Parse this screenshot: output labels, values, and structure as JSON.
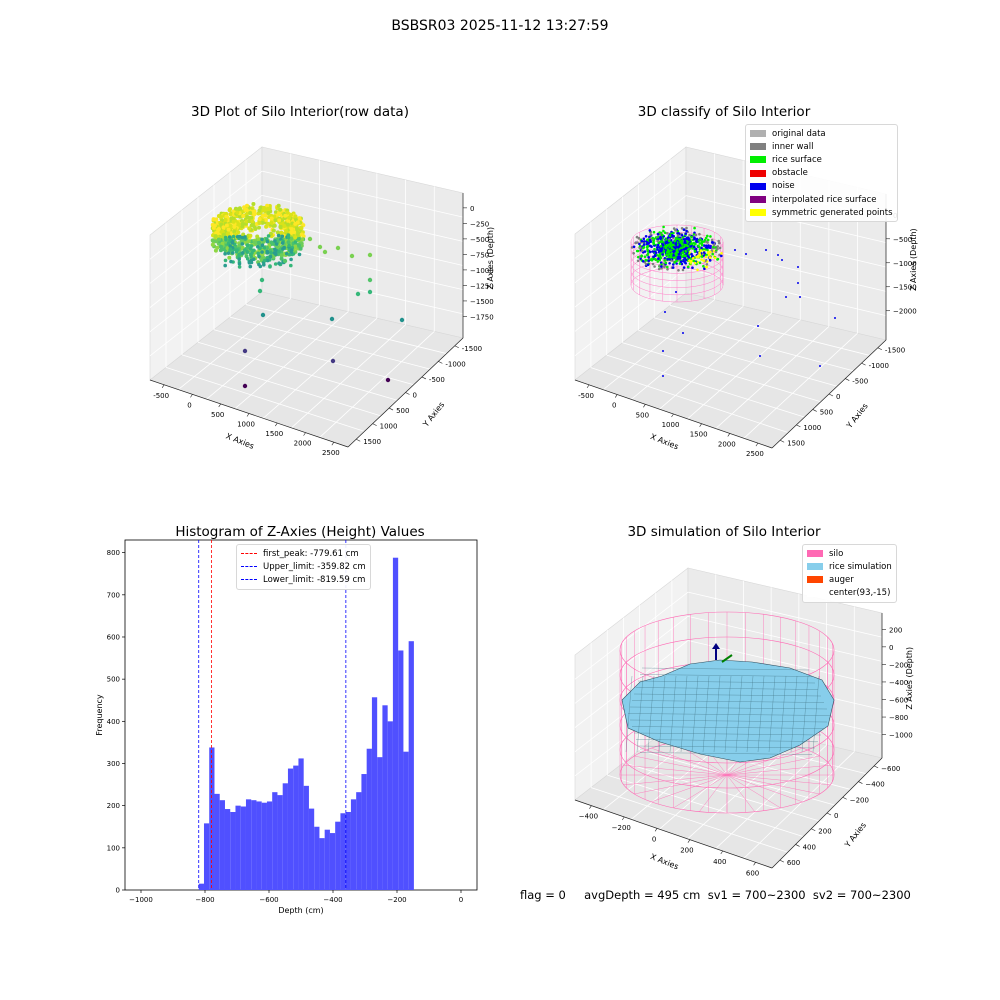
{
  "suptitle": "BSBSR03 2025-11-12 13:27:59",
  "footer": "flag = 0     avgDepth = 495 cm  sv1 = 700~2300  sv2 = 700~2300",
  "chart_data": [
    {
      "type": "scatter",
      "title": "3D Plot of Silo Interior(row data)",
      "xlabel": "X Axies",
      "ylabel": "Y Axies",
      "zlabel": "Z Axies (Depth)",
      "x_ticks": [
        "-500",
        "0",
        "500",
        "1000",
        "1500",
        "2000",
        "2500"
      ],
      "y_ticks": [
        "-1500",
        "-1000",
        "-500",
        "0",
        "500",
        "1000",
        "1500"
      ],
      "z_ticks": [
        "0",
        "−250",
        "−500",
        "−750",
        "−1000",
        "−1250",
        "−1500",
        "−1750"
      ],
      "colormap": "viridis"
    },
    {
      "type": "scatter",
      "title": "3D classify of Silo Interior",
      "xlabel": "X Axies",
      "ylabel": "Y Axies",
      "zlabel": "Z Axies (Depth)",
      "x_ticks": [
        "-500",
        "0",
        "500",
        "1000",
        "1500",
        "2000",
        "2500"
      ],
      "y_ticks": [
        "-1500",
        "-1000",
        "-500",
        "0",
        "500",
        "1000",
        "1500"
      ],
      "z_ticks": [
        "0",
        "−500",
        "−1000",
        "−1500",
        "−2000"
      ],
      "legend": [
        {
          "label": "original data",
          "color": "#b0b0b0"
        },
        {
          "label": "inner wall",
          "color": "#808080"
        },
        {
          "label": "rice surface",
          "color": "#00ee00"
        },
        {
          "label": "obstacle",
          "color": "#ee0000"
        },
        {
          "label": "noise",
          "color": "#0000ee"
        },
        {
          "label": "interpolated rice surface",
          "color": "#800080"
        },
        {
          "label": "symmetric generated points",
          "color": "#ffff00"
        }
      ]
    },
    {
      "type": "bar",
      "title": "Histogram of Z-Axies (Height) Values",
      "xlabel": "Depth (cm)",
      "ylabel": "Frequency",
      "xlim": [
        -1050,
        50
      ],
      "ylim": [
        0,
        830
      ],
      "x_ticks": [
        -1000,
        -800,
        -600,
        -400,
        -200,
        0
      ],
      "y_ticks": [
        0,
        100,
        200,
        300,
        400,
        500,
        600,
        700,
        800
      ],
      "bar_color": "#5050ff",
      "bin_start": -819.59,
      "bin_width": 16.4,
      "values": [
        15,
        158,
        338,
        228,
        213,
        192,
        185,
        200,
        198,
        215,
        213,
        210,
        207,
        210,
        232,
        225,
        253,
        288,
        295,
        312,
        247,
        193,
        150,
        123,
        143,
        135,
        162,
        182,
        185,
        215,
        232,
        275,
        335,
        457,
        315,
        438,
        400,
        788,
        568,
        328,
        590
      ],
      "vlines": [
        {
          "label": "first_peak: -779.61 cm",
          "x": -779.61,
          "color": "#ff0000"
        },
        {
          "label": "Upper_limit: -359.82 cm",
          "x": -359.82,
          "color": "#0000ff"
        },
        {
          "label": "Lower_limit: -819.59 cm",
          "x": -819.59,
          "color": "#0000ff"
        }
      ]
    },
    {
      "type": "scatter",
      "title": "3D simulation of Silo Interior",
      "xlabel": "X Axies",
      "ylabel": "Y Axies",
      "zlabel": "Z Axies (Depth)",
      "x_ticks": [
        "−400",
        "−200",
        "0",
        "200",
        "400",
        "600"
      ],
      "y_ticks": [
        "−600",
        "−400",
        "−200",
        "0",
        "200",
        "400",
        "600"
      ],
      "z_ticks": [
        "200",
        "0",
        "−200",
        "−400",
        "−600",
        "−800",
        "−1000"
      ],
      "legend": [
        {
          "label": "silo",
          "color": "#ff69b4"
        },
        {
          "label": "rice simulation",
          "color": "#87ceeb"
        },
        {
          "label": "auger",
          "color": "#ff4500"
        },
        {
          "label": "center(93,-15)",
          "color": "#ffffff"
        }
      ]
    }
  ]
}
